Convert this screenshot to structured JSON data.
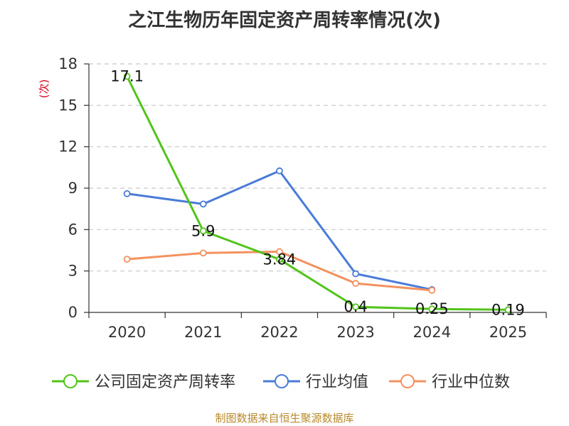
{
  "title": "之江生物历年固定资产周转率情况(次)",
  "source": "制图数据来自恒生聚源数据库",
  "chart_data": {
    "type": "line",
    "title": "之江生物历年固定资产周转率情况(次)",
    "ylabel": "(次)",
    "categories": [
      "2020",
      "2021",
      "2022",
      "2023",
      "2024",
      "2025"
    ],
    "ylim": [
      0,
      18
    ],
    "yticks": [
      0,
      3,
      6,
      9,
      12,
      15,
      18
    ],
    "grid": true,
    "legend": "bottom",
    "series": [
      {
        "name": "公司固定资产周转率",
        "color": "#52c41a",
        "values": [
          17.1,
          5.9,
          3.84,
          0.4,
          0.25,
          0.19
        ],
        "labels": [
          "17.1",
          "5.9",
          "3.84",
          "0.4",
          "0.25",
          "0.19"
        ]
      },
      {
        "name": "行业均值",
        "color": "#4a7bd8",
        "values": [
          8.6,
          7.85,
          10.25,
          2.8,
          1.65,
          null
        ]
      },
      {
        "name": "行业中位数",
        "color": "#f4915e",
        "values": [
          3.85,
          4.3,
          4.4,
          2.1,
          1.6,
          null
        ]
      }
    ]
  }
}
